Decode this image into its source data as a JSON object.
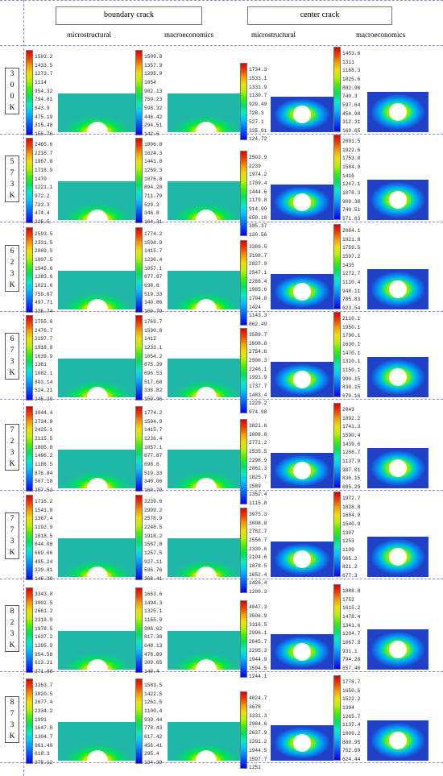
{
  "headers": {
    "boundary_crack": "boundary crack",
    "center_crack": "center crack"
  },
  "column_heads": [
    "microstructural",
    "macroeconomics",
    "microstructural",
    "macroeconomics"
  ],
  "colors": {
    "scale": [
      "#0000ff",
      "#0044ff",
      "#0088ff",
      "#00c8ff",
      "#00f0c0",
      "#00e060",
      "#40f000",
      "#b8f000",
      "#f0e000",
      "#f0a000",
      "#f04000",
      "#e00000"
    ],
    "boundary_bg": "#1fb8a8",
    "center_bg": "#2040c8"
  },
  "rows": [
    {
      "temp": [
        "3",
        "0",
        "0",
        "K"
      ],
      "legends": [
        [
          "1593.2",
          "1433.5",
          "1273.7",
          "1114",
          "954.32",
          "794.61",
          "643.9",
          "475.19",
          "315.48",
          "155.76"
        ],
        [
          "1509.8",
          "1357.9",
          "1205.9",
          "1054",
          "902.13",
          "750.23",
          "598.32",
          "446.42",
          "294.51",
          "142.6"
        ],
        [
          "1734.3",
          "1533.1",
          "1331.9",
          "1130.7",
          "929.49",
          "728.3",
          "527.1",
          "325.91",
          "124.72"
        ],
        [
          "1453.6",
          "1311",
          "1168.3",
          "1025.6",
          "882.96",
          "740.3",
          "597.64",
          "454.98",
          "312.31",
          "169.65"
        ]
      ]
    },
    {
      "temp": [
        "5",
        "7",
        "3",
        "K"
      ],
      "legends": [
        [
          "2465.6",
          "2216.7",
          "1967.8",
          "1718.9",
          "1470",
          "1221.1",
          "972.2",
          "723.3",
          "474.4",
          "225.5"
        ],
        [
          "1806.8",
          "1624.3",
          "1441.8",
          "1259.3",
          "1076.8",
          "894.28",
          "711.79",
          "529.3",
          "346.8",
          "164.31"
        ],
        [
          "2503.9",
          "2239",
          "1974.2",
          "1709.4",
          "1444.6",
          "1179.8",
          "914.99",
          "650.18",
          "385.37",
          "120.56"
        ],
        [
          "2091.5",
          "1922.6",
          "1753.8",
          "1584.9",
          "1416",
          "1247.1",
          "1078.3",
          "909.38",
          "740.51",
          "571.63"
        ]
      ]
    },
    {
      "temp": [
        "6",
        "2",
        "3",
        "K"
      ],
      "legends": [
        [
          "2593.5",
          "2331.5",
          "2069.5",
          "1807.5",
          "1545.6",
          "1283.6",
          "1021.6",
          "759.67",
          "497.71",
          "235.74"
        ],
        [
          "1774.2",
          "1594.9",
          "1415.7",
          "1236.4",
          "1057.1",
          "877.87",
          "698.6",
          "519.33",
          "340.06",
          "160.79"
        ],
        [
          "3389.5",
          "3108.7",
          "2827.9",
          "2547.1",
          "2266.4",
          "1985.6",
          "1704.8",
          "1424",
          "1143.3",
          "862.49"
        ],
        [
          "2084.1",
          "1921.8",
          "1759.5",
          "1597.2",
          "1435",
          "1272.7",
          "1110.4",
          "948.11",
          "785.83",
          "623.54"
        ]
      ]
    },
    {
      "temp": [
        "6",
        "7",
        "3",
        "K"
      ],
      "legends": [
        [
          "2755.6",
          "2476.7",
          "2197.7",
          "1918.8",
          "1639.9",
          "1361",
          "1082.1",
          "803.14",
          "524.21",
          "245.29"
        ],
        [
          "1769.7",
          "1590.8",
          "1412",
          "1233.1",
          "1054.2",
          "875.39",
          "696.53",
          "517.68",
          "338.82",
          "159.96"
        ],
        [
          "3589.7",
          "3008.8",
          "2754.6",
          "2500.3",
          "2246.1",
          "1991.9",
          "1737.7",
          "1483.4",
          "1229.2",
          "974.98"
        ],
        [
          "2110.1",
          "1950.1",
          "1790.1",
          "1630.1",
          "1470.1",
          "1310.1",
          "1150.1",
          "990.15",
          "830.15",
          "670.16"
        ]
      ]
    },
    {
      "temp": [
        "7",
        "2",
        "3",
        "K"
      ],
      "legends": [
        [
          "3044.4",
          "2734.8",
          "2425.1",
          "2115.5",
          "1805.8",
          "1496.2",
          "1186.5",
          "876.84",
          "567.18",
          "257.53"
        ],
        [
          "1774.2",
          "1594.9",
          "1415.7",
          "1236.4",
          "1057.1",
          "877.87",
          "698.6",
          "519.33",
          "340.06",
          "160.79"
        ],
        [
          "3821.6",
          "3008.8",
          "2772.2",
          "2535.5",
          "2298.9",
          "2062.3",
          "1825.7",
          "1589",
          "1352.4",
          "1115.8"
        ],
        [
          "2043",
          "1892.2",
          "1741.3",
          "1590.4",
          "1439.6",
          "1288.7",
          "1137.9",
          "987.01",
          "836.15",
          "685.29"
        ]
      ]
    },
    {
      "temp": [
        "7",
        "7",
        "3",
        "K"
      ],
      "legends": [
        [
          "1716.2",
          "1541.8",
          "1367.4",
          "1192.9",
          "1018.5",
          "844.08",
          "669.66",
          "495.24",
          "320.81",
          "146.39"
        ],
        [
          "3239.6",
          "2909.2",
          "2578.9",
          "2248.5",
          "1918.2",
          "1587.8",
          "1257.5",
          "927.11",
          "596.76",
          "266.41"
        ],
        [
          "3975.3",
          "3008.8",
          "2782.7",
          "2556.7",
          "2330.6",
          "2104.6",
          "1878.5",
          "1652.4",
          "1426.4",
          "1200.3"
        ],
        [
          "1972.7",
          "1828.8",
          "1684.9",
          "1540.9",
          "1397",
          "1253",
          "1109",
          "965.2",
          "821.2",
          "677.3"
        ]
      ]
    },
    {
      "temp": [
        "8",
        "2",
        "3",
        "K"
      ],
      "legends": [
        [
          "3343.8",
          "3002.5",
          "2661.2",
          "2319.9",
          "1978.5",
          "1637.2",
          "1295.9",
          "954.58",
          "613.21",
          "271.88"
        ],
        [
          "1663.6",
          "1494.3",
          "1325.1",
          "1155.9",
          "986.62",
          "817.38",
          "648.13",
          "478.89",
          "309.65",
          "140.4"
        ],
        [
          "4047.3",
          "3696.9",
          "3316.5",
          "2996.1",
          "2645.7",
          "2295.3",
          "1944.9",
          "1594.5",
          "1244.1"
        ],
        [
          "1888.8",
          "1752",
          "1615.2",
          "1478.4",
          "1341.6",
          "1204.7",
          "1067.9",
          "931.1",
          "794.28",
          "657.46"
        ]
      ]
    },
    {
      "temp": [
        "8",
        "7",
        "3",
        "K"
      ],
      "legends": [
        [
          "3363.7",
          "3020.5",
          "2677.4",
          "2334.2",
          "1991",
          "1647.8",
          "1304.7",
          "961.48",
          "618.3",
          "275.12"
        ],
        [
          "1583.5",
          "1422.5",
          "1261.5",
          "1100.4",
          "939.44",
          "778.43",
          "617.42",
          "456.41",
          "295.4",
          "134.39"
        ],
        [
          "4024.7",
          "3678",
          "3331.3",
          "2984.6",
          "2637.9",
          "2291.2",
          "1944.5",
          "1597.7",
          "1251"
        ],
        [
          "1778.7",
          "1650.5",
          "1522.2",
          "1394",
          "1265.7",
          "1137.4",
          "1009.2",
          "880.95",
          "752.69",
          "624.44"
        ]
      ]
    }
  ]
}
